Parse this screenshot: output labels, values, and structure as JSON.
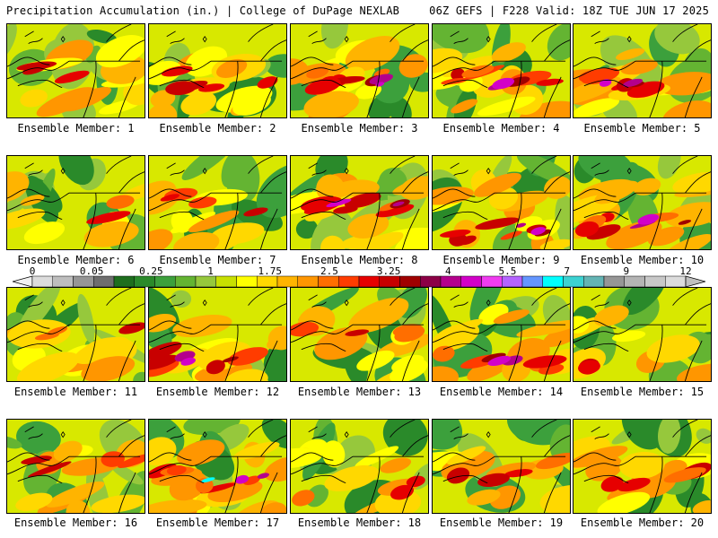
{
  "header": {
    "left": "Precipitation Accumulation (in.) | College of DuPage NEXLAB",
    "right": "06Z GEFS | F228 Valid: 18Z TUE JUN 17 2025"
  },
  "panel_label_prefix": "Ensemble Member: ",
  "members": [
    {
      "id": 1,
      "intensity": 0.45
    },
    {
      "id": 2,
      "intensity": 0.7
    },
    {
      "id": 3,
      "intensity": 0.8
    },
    {
      "id": 4,
      "intensity": 0.8
    },
    {
      "id": 5,
      "intensity": 0.75
    },
    {
      "id": 6,
      "intensity": 0.3
    },
    {
      "id": 7,
      "intensity": 0.55
    },
    {
      "id": 8,
      "intensity": 0.85
    },
    {
      "id": 9,
      "intensity": 0.85
    },
    {
      "id": 10,
      "intensity": 0.85
    },
    {
      "id": 11,
      "intensity": 0.4
    },
    {
      "id": 12,
      "intensity": 0.75
    },
    {
      "id": 13,
      "intensity": 0.5
    },
    {
      "id": 14,
      "intensity": 0.75
    },
    {
      "id": 15,
      "intensity": 0.3
    },
    {
      "id": 16,
      "intensity": 0.5
    },
    {
      "id": 17,
      "intensity": 0.95
    },
    {
      "id": 18,
      "intensity": 0.45
    },
    {
      "id": 19,
      "intensity": 0.55
    },
    {
      "id": 20,
      "intensity": 0.5
    }
  ],
  "colorbar": {
    "labels": [
      "0",
      "0.05",
      "0.25",
      "1",
      "1.75",
      "2.5",
      "3.25",
      "4",
      "5.5",
      "7",
      "9",
      "12"
    ],
    "colors": [
      "#dcdcdc",
      "#bebebe",
      "#969696",
      "#6e6e6e",
      "#1e6e1e",
      "#2a8a2a",
      "#3ca03c",
      "#64b432",
      "#96c83c",
      "#c8e000",
      "#ffff00",
      "#ffd800",
      "#ffb400",
      "#ff9600",
      "#ff6e00",
      "#ff3c00",
      "#e60000",
      "#c80000",
      "#a00000",
      "#8c0046",
      "#b4008c",
      "#d200c8",
      "#f03cf0",
      "#b464ff",
      "#6496ff",
      "#00ffff",
      "#3cd2d2",
      "#64b4b4",
      "#969696",
      "#b4b4b4",
      "#c8c8c8",
      "#dcdcdc"
    ]
  }
}
